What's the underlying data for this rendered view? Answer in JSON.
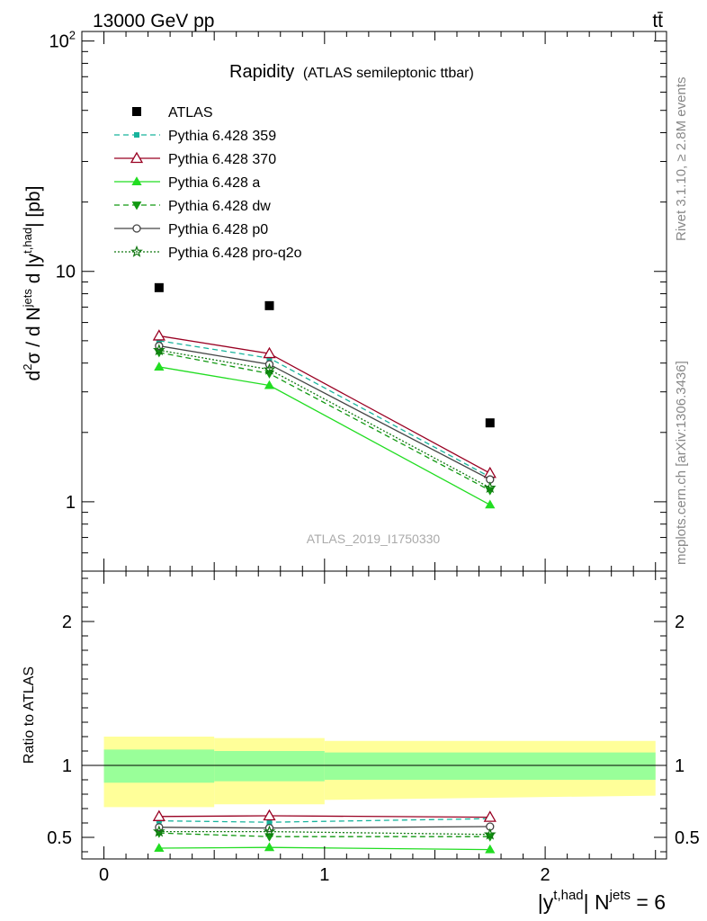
{
  "header": {
    "energy_label": "13000 GeV pp",
    "process_label": "tt̄"
  },
  "side_labels": {
    "rivet": "Rivet 3.1.10, ≥ 2.8M events",
    "mcplots": "mcplots.cern.ch [arXiv:1306.3436]"
  },
  "chart_data": [
    {
      "type": "line",
      "title": "Rapidity",
      "subtitle": "(ATLAS semileptonic ttbar)",
      "ylabel": "d²σ / d Nʲᵉᵗˢ d |yᵗ,ʰᵃᵈ| [pb]",
      "ylabel_parts": {
        "main": "d",
        "sup1": "2",
        "sigma": "σ / d N",
        "sup2": "jets",
        "mid": " d |y",
        "sup3": "t,had",
        "end": "| [pb]"
      },
      "watermark": "ATLAS_2019_I1750330",
      "yscale": "log",
      "ylim": [
        0.5,
        110
      ],
      "xlim": [
        -0.1,
        2.55
      ],
      "y_ticks": [
        {
          "value": 1,
          "label": "1"
        },
        {
          "value": 10,
          "label": "10"
        },
        {
          "value": 100,
          "label": "10",
          "sup": "2"
        }
      ],
      "x": [
        0.25,
        0.75,
        1.75
      ],
      "series": [
        {
          "name": "ATLAS",
          "color": "#000000",
          "marker": "square-filled",
          "line": "none",
          "values": [
            8.5,
            7.1,
            2.2
          ]
        },
        {
          "name": "Pythia 6.428 359",
          "color": "#17b39c",
          "marker": "square-filled-small",
          "line": "dashed",
          "values": [
            5.0,
            4.2,
            1.28
          ]
        },
        {
          "name": "Pythia 6.428 370",
          "color": "#990022",
          "marker": "triangle-open",
          "line": "solid",
          "values": [
            5.25,
            4.4,
            1.33
          ]
        },
        {
          "name": "Pythia 6.428 a",
          "color": "#22dd22",
          "marker": "triangle-filled",
          "line": "solid",
          "values": [
            3.85,
            3.2,
            0.97
          ]
        },
        {
          "name": "Pythia 6.428 dw",
          "color": "#119911",
          "marker": "triangle-down-filled",
          "line": "dashed",
          "values": [
            4.45,
            3.6,
            1.12
          ]
        },
        {
          "name": "Pythia 6.428 p0",
          "color": "#444444",
          "marker": "circle-open",
          "line": "solid",
          "values": [
            4.75,
            3.95,
            1.25
          ]
        },
        {
          "name": "Pythia 6.428 pro-q2o",
          "color": "#117711",
          "marker": "star-open",
          "line": "dotted",
          "values": [
            4.55,
            3.75,
            1.15
          ]
        }
      ]
    },
    {
      "type": "line",
      "ylabel": "Ratio to ATLAS",
      "xlabel_parts": {
        "main": "|y",
        "sup1": "t,had",
        "mid": "| N",
        "sup2": "jets",
        "end": " = 6"
      },
      "ylim": [
        0.35,
        2.35
      ],
      "xlim": [
        -0.1,
        2.55
      ],
      "y_ticks": [
        {
          "value": 0.5,
          "label": "0.5"
        },
        {
          "value": 1,
          "label": "1"
        },
        {
          "value": 2,
          "label": "2"
        }
      ],
      "x_ticks": [
        {
          "value": 0,
          "label": "0"
        },
        {
          "value": 1,
          "label": "1"
        },
        {
          "value": 2,
          "label": "2"
        }
      ],
      "bands": {
        "bin_edges": [
          0,
          0.5,
          1.0,
          2.5
        ],
        "total_uncertainty": [
          [
            0.71,
            1.2
          ],
          [
            0.73,
            1.19
          ],
          [
            0.76,
            1.17
          ],
          [
            0.79,
            1.17
          ]
        ],
        "stat_uncertainty": [
          [
            0.88,
            1.11
          ],
          [
            0.89,
            1.1
          ],
          [
            0.9,
            1.09
          ],
          [
            0.9,
            1.09
          ]
        ],
        "total_color": "#ffff99",
        "stat_color": "#99ff99"
      },
      "x": [
        0.25,
        0.75,
        1.75
      ],
      "series": [
        {
          "name": "Pythia 6.428 359",
          "color": "#17b39c",
          "marker": "square-filled-small",
          "line": "dashed",
          "values": [
            0.615,
            0.605,
            0.63
          ]
        },
        {
          "name": "Pythia 6.428 370",
          "color": "#990022",
          "marker": "triangle-open",
          "line": "solid",
          "values": [
            0.645,
            0.65,
            0.64
          ]
        },
        {
          "name": "Pythia 6.428 a",
          "color": "#22dd22",
          "marker": "triangle-filled",
          "line": "solid",
          "values": [
            0.425,
            0.43,
            0.415
          ]
        },
        {
          "name": "Pythia 6.428 dw",
          "color": "#119911",
          "marker": "triangle-down-filled",
          "line": "dashed",
          "values": [
            0.53,
            0.505,
            0.505
          ]
        },
        {
          "name": "Pythia 6.428 p0",
          "color": "#444444",
          "marker": "circle-open",
          "line": "solid",
          "values": [
            0.57,
            0.565,
            0.575
          ]
        },
        {
          "name": "Pythia 6.428 pro-q2o",
          "color": "#117711",
          "marker": "star-open",
          "line": "dotted",
          "values": [
            0.54,
            0.54,
            0.52
          ]
        }
      ]
    }
  ]
}
